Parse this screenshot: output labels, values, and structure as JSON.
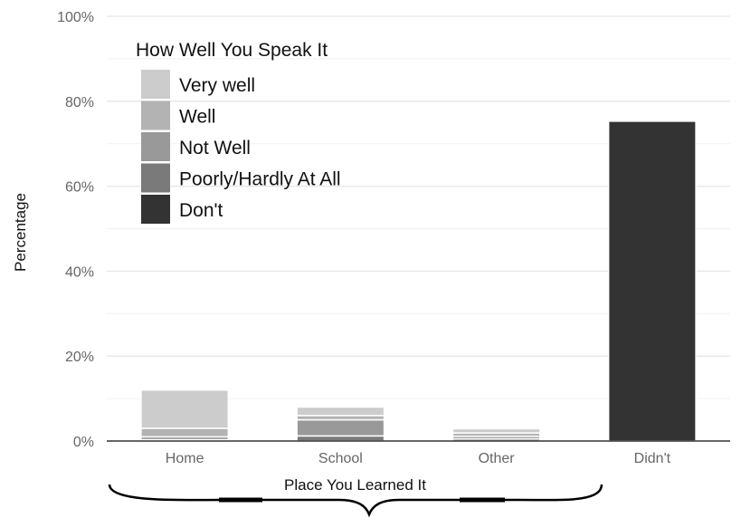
{
  "chart_data": {
    "type": "bar",
    "stacked": true,
    "title": "",
    "xlabel": "Place You Learned It",
    "ylabel": "Percentage",
    "ylim": [
      0,
      100
    ],
    "y_ticks": [
      "0%",
      "20%",
      "40%",
      "60%",
      "80%",
      "100%"
    ],
    "y_tick_values": [
      0,
      20,
      40,
      60,
      80,
      100
    ],
    "grid": true,
    "categories": [
      "Home",
      "School",
      "Other",
      "Didn't"
    ],
    "legend": {
      "title": "How Well You Speak It",
      "placement": "top-left-inside"
    },
    "series": [
      {
        "name": "Poorly/Hardly At All",
        "color": "#7a7a7a",
        "values": [
          0.3,
          1.2,
          0.5,
          0
        ]
      },
      {
        "name": "Not Well",
        "color": "#999999",
        "values": [
          0.7,
          3.8,
          0.6,
          0
        ]
      },
      {
        "name": "Well",
        "color": "#b3b3b3",
        "values": [
          2.0,
          1.0,
          0.8,
          0
        ]
      },
      {
        "name": "Very well",
        "color": "#cccccc",
        "values": [
          9.0,
          2.0,
          1.0,
          0
        ]
      },
      {
        "name": "Don't",
        "color": "#333333",
        "values": [
          0,
          0,
          0,
          75.3
        ]
      }
    ],
    "legend_order": [
      "Very well",
      "Well",
      "Not Well",
      "Poorly/Hardly At All",
      "Don't"
    ]
  }
}
